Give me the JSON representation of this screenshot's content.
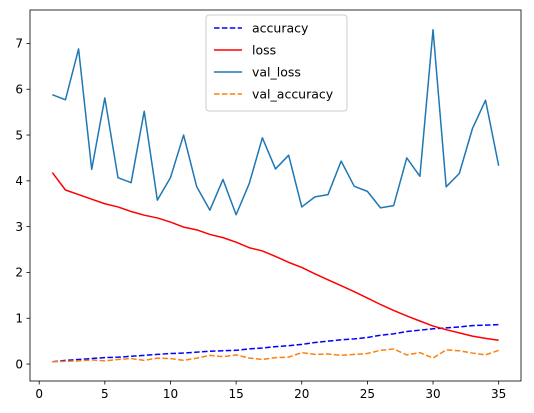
{
  "chart_data": {
    "type": "line",
    "title": "",
    "xlabel": "",
    "ylabel": "",
    "xlim": [
      -0.7,
      36.7
    ],
    "ylim": [
      -0.37,
      7.73
    ],
    "xticks": [
      0,
      5,
      10,
      15,
      20,
      25,
      30,
      35
    ],
    "yticks": [
      0,
      1,
      2,
      3,
      4,
      5,
      6,
      7
    ],
    "grid": false,
    "legend_position": "top-center",
    "x": [
      1,
      2,
      3,
      4,
      5,
      6,
      7,
      8,
      9,
      10,
      11,
      12,
      13,
      14,
      15,
      16,
      17,
      18,
      19,
      20,
      21,
      22,
      23,
      24,
      25,
      26,
      27,
      28,
      29,
      30,
      31,
      32,
      33,
      34,
      35
    ],
    "series": [
      {
        "name": "accuracy",
        "color": "#0000ff",
        "style": "dashed",
        "values": [
          0.05,
          0.08,
          0.1,
          0.12,
          0.14,
          0.15,
          0.17,
          0.19,
          0.21,
          0.23,
          0.24,
          0.26,
          0.28,
          0.29,
          0.3,
          0.33,
          0.35,
          0.38,
          0.4,
          0.43,
          0.47,
          0.5,
          0.53,
          0.55,
          0.58,
          0.63,
          0.66,
          0.71,
          0.74,
          0.77,
          0.79,
          0.81,
          0.84,
          0.85,
          0.86
        ]
      },
      {
        "name": "loss",
        "color": "#ff0000",
        "style": "solid",
        "values": [
          4.18,
          3.8,
          3.7,
          3.6,
          3.5,
          3.43,
          3.33,
          3.25,
          3.19,
          3.1,
          2.99,
          2.93,
          2.83,
          2.76,
          2.66,
          2.54,
          2.47,
          2.35,
          2.22,
          2.11,
          1.97,
          1.84,
          1.71,
          1.58,
          1.44,
          1.3,
          1.17,
          1.05,
          0.94,
          0.83,
          0.75,
          0.68,
          0.61,
          0.56,
          0.52
        ]
      },
      {
        "name": "val_loss",
        "color": "#1f77b4",
        "style": "solid",
        "values": [
          5.88,
          5.77,
          6.88,
          4.25,
          5.81,
          4.07,
          3.96,
          5.52,
          3.58,
          4.07,
          5.0,
          3.87,
          3.36,
          4.03,
          3.26,
          3.94,
          4.94,
          4.26,
          4.56,
          3.43,
          3.65,
          3.7,
          4.43,
          3.88,
          3.77,
          3.41,
          3.46,
          4.5,
          4.1,
          7.3,
          3.87,
          4.16,
          5.14,
          5.76,
          4.33
        ]
      },
      {
        "name": "val_accuracy",
        "color": "#ff7f0e",
        "style": "dashed",
        "values": [
          0.05,
          0.06,
          0.07,
          0.09,
          0.07,
          0.1,
          0.12,
          0.08,
          0.13,
          0.12,
          0.08,
          0.13,
          0.19,
          0.16,
          0.2,
          0.13,
          0.1,
          0.14,
          0.15,
          0.25,
          0.21,
          0.22,
          0.19,
          0.21,
          0.23,
          0.3,
          0.33,
          0.2,
          0.25,
          0.13,
          0.31,
          0.29,
          0.24,
          0.2,
          0.3
        ]
      }
    ]
  }
}
